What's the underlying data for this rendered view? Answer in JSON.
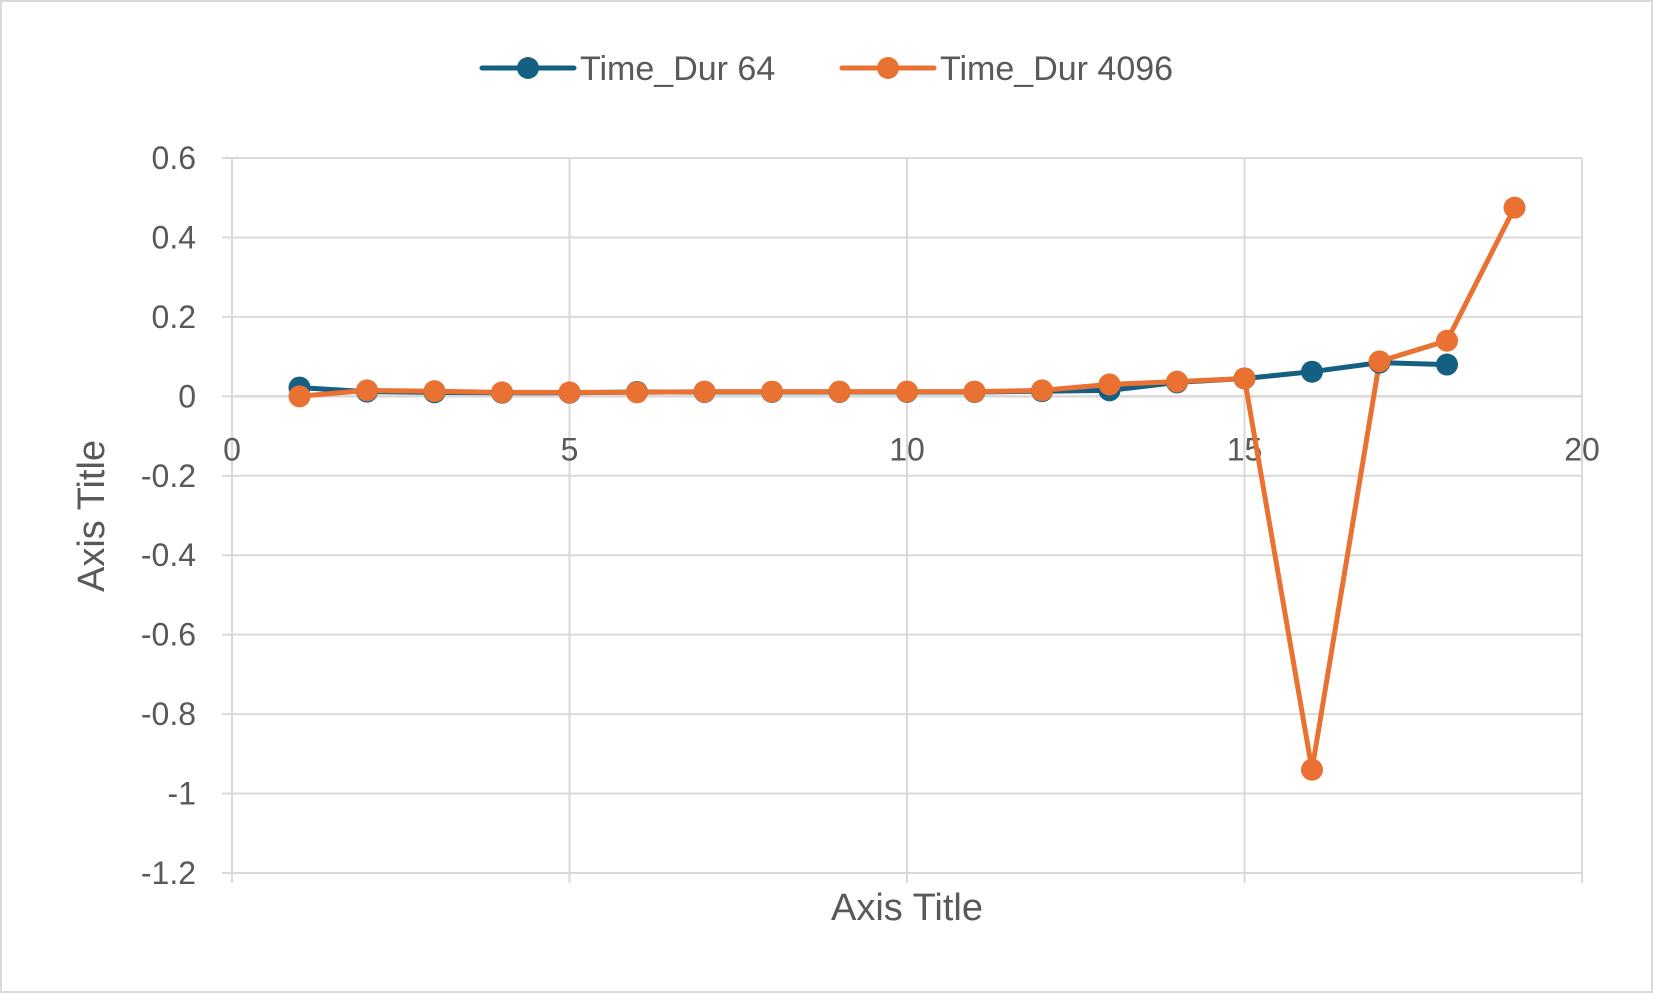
{
  "chart_data": {
    "type": "line",
    "xlabel": "Axis Title",
    "ylabel": "Axis Title",
    "xlim": [
      0,
      20
    ],
    "ylim": [
      -1.2,
      0.6
    ],
    "x_ticks": [
      0,
      5,
      10,
      15,
      20
    ],
    "y_ticks": [
      0.6,
      0.4,
      0.2,
      0,
      -0.2,
      -0.4,
      -0.6,
      -0.8,
      -1,
      -1.2
    ],
    "x_tick_labels": [
      "0",
      "5",
      "10",
      "15",
      "20"
    ],
    "y_tick_labels": [
      "0.6",
      "0.4",
      "0.2",
      "0",
      "-0.2",
      "-0.4",
      "-0.6",
      "-0.8",
      "-1",
      "-1.2"
    ],
    "grid": true,
    "legend_position": "top",
    "series": [
      {
        "name": "Time_Dur 64",
        "color": "#156082",
        "x": [
          1,
          2,
          3,
          4,
          5,
          6,
          7,
          8,
          9,
          10,
          11,
          12,
          13,
          14,
          15,
          16,
          17,
          18
        ],
        "y": [
          0.022,
          0.012,
          0.01,
          0.009,
          0.009,
          0.011,
          0.011,
          0.011,
          0.011,
          0.011,
          0.011,
          0.013,
          0.015,
          0.035,
          0.045,
          0.062,
          0.085,
          0.08
        ]
      },
      {
        "name": "Time_Dur 4096",
        "color": "#E97132",
        "x": [
          1,
          2,
          3,
          4,
          5,
          6,
          7,
          8,
          9,
          10,
          11,
          12,
          13,
          14,
          15,
          16,
          17,
          18,
          19
        ],
        "y": [
          0.0,
          0.015,
          0.013,
          0.01,
          0.01,
          0.01,
          0.012,
          0.012,
          0.012,
          0.012,
          0.012,
          0.015,
          0.03,
          0.037,
          0.045,
          -0.94,
          0.088,
          0.14,
          0.475
        ]
      }
    ]
  }
}
